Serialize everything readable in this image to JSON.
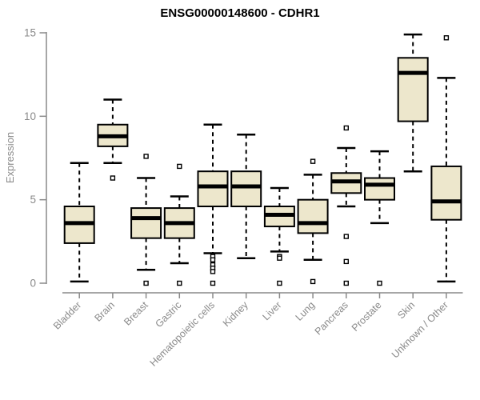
{
  "colors": {
    "box_fill": "#EDE7CC",
    "box_border": "#000000",
    "median": "#000000",
    "whisker": "#000000",
    "outlier_fill": "#ffffff",
    "outlier_border": "#000000",
    "axis": "#8a8a8a",
    "tick_label": "#8a8a8a",
    "title": "#000000",
    "background": "#ffffff"
  },
  "chart_data": {
    "type": "boxplot",
    "title": "ENSG00000148600 - CDHR1",
    "xlabel": "",
    "ylabel": "Expression",
    "ylim": [
      0,
      15
    ],
    "yticks": [
      0,
      5,
      10,
      15
    ],
    "grid": "off",
    "legend": "none",
    "categories": [
      "Bladder",
      "Brain",
      "Breast",
      "Gastric",
      "Hematopoietic cells",
      "Kidney",
      "Liver",
      "Lung",
      "Pancreas",
      "Prostate",
      "Skin",
      "Unknown / Other"
    ],
    "boxes": [
      {
        "category": "Bladder",
        "whisker_low": 0.1,
        "q1": 2.4,
        "median": 3.6,
        "q3": 4.6,
        "whisker_high": 7.2,
        "outliers": []
      },
      {
        "category": "Brain",
        "whisker_low": 7.2,
        "q1": 8.2,
        "median": 8.8,
        "q3": 9.5,
        "whisker_high": 11.0,
        "outliers": [
          6.3
        ]
      },
      {
        "category": "Breast",
        "whisker_low": 0.8,
        "q1": 2.7,
        "median": 3.9,
        "q3": 4.5,
        "whisker_high": 6.3,
        "outliers": [
          7.6,
          0.0
        ]
      },
      {
        "category": "Gastric",
        "whisker_low": 1.2,
        "q1": 2.7,
        "median": 3.6,
        "q3": 4.5,
        "whisker_high": 5.2,
        "outliers": [
          7.0,
          0.0
        ]
      },
      {
        "category": "Hematopoietic cells",
        "whisker_low": 1.8,
        "q1": 4.6,
        "median": 5.8,
        "q3": 6.7,
        "whisker_high": 9.5,
        "outliers": [
          1.6,
          1.4,
          1.1,
          0.9,
          0.7,
          0.0
        ]
      },
      {
        "category": "Kidney",
        "whisker_low": 1.5,
        "q1": 4.6,
        "median": 5.8,
        "q3": 6.7,
        "whisker_high": 8.9,
        "outliers": []
      },
      {
        "category": "Liver",
        "whisker_low": 1.9,
        "q1": 3.4,
        "median": 4.1,
        "q3": 4.6,
        "whisker_high": 5.7,
        "outliers": [
          1.6,
          1.5,
          0.0
        ]
      },
      {
        "category": "Lung",
        "whisker_low": 1.4,
        "q1": 3.0,
        "median": 3.6,
        "q3": 5.0,
        "whisker_high": 6.5,
        "outliers": [
          7.3,
          0.1
        ]
      },
      {
        "category": "Pancreas",
        "whisker_low": 4.6,
        "q1": 5.4,
        "median": 6.1,
        "q3": 6.6,
        "whisker_high": 8.1,
        "outliers": [
          9.3,
          2.8,
          1.3,
          0.0
        ]
      },
      {
        "category": "Prostate",
        "whisker_low": 3.6,
        "q1": 5.0,
        "median": 5.9,
        "q3": 6.3,
        "whisker_high": 7.9,
        "outliers": [
          0.0
        ]
      },
      {
        "category": "Skin",
        "whisker_low": 6.7,
        "q1": 9.7,
        "median": 12.6,
        "q3": 13.5,
        "whisker_high": 14.9,
        "outliers": []
      },
      {
        "category": "Unknown / Other",
        "whisker_low": 0.1,
        "q1": 3.8,
        "median": 4.9,
        "q3": 7.0,
        "whisker_high": 12.3,
        "outliers": [
          14.7
        ]
      }
    ]
  }
}
